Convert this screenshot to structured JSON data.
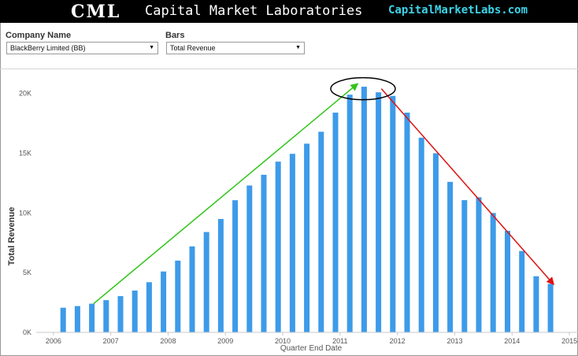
{
  "header": {
    "logo": "CML",
    "title": "Capital Market Laboratories",
    "url": "CapitalMarketLabs.com"
  },
  "controls": {
    "company_label": "Company Name",
    "company_value": "BlackBerry Limited (BB)",
    "bars_label": "Bars",
    "bars_value": "Total Revenue"
  },
  "colors": {
    "bar": "#3d9be9",
    "up_arrow": "#33c41a",
    "down_arrow": "#e01010",
    "highlight_ellipse": "#000000"
  },
  "chart_data": {
    "type": "bar",
    "xlabel": "Quarter End Date",
    "ylabel": "Total Revenue",
    "ylim": [
      0,
      21500
    ],
    "xlim": [
      2005.7,
      2015.15
    ],
    "grid": false,
    "y_ticks": [
      {
        "value": 0,
        "label": "0K"
      },
      {
        "value": 5000,
        "label": "5K"
      },
      {
        "value": 10000,
        "label": "10K"
      },
      {
        "value": 15000,
        "label": "15K"
      },
      {
        "value": 20000,
        "label": "20K"
      }
    ],
    "x_ticks": [
      "2006",
      "2007",
      "2008",
      "2009",
      "2010",
      "2011",
      "2012",
      "2013",
      "2014",
      "2015"
    ],
    "x": [
      2006.17,
      2006.42,
      2006.67,
      2006.92,
      2007.17,
      2007.42,
      2007.67,
      2007.92,
      2008.17,
      2008.42,
      2008.67,
      2008.92,
      2009.17,
      2009.42,
      2009.67,
      2009.92,
      2010.17,
      2010.42,
      2010.67,
      2010.92,
      2011.17,
      2011.42,
      2011.67,
      2011.92,
      2012.17,
      2012.42,
      2012.67,
      2012.92,
      2013.17,
      2013.42,
      2013.67,
      2013.92,
      2014.17,
      2014.42,
      2014.67
    ],
    "values": [
      2066,
      2200,
      2400,
      2700,
      3037,
      3500,
      4200,
      5100,
      6009,
      7200,
      8400,
      9500,
      11065,
      12300,
      13200,
      14300,
      14953,
      15800,
      16800,
      18400,
      19907,
      20567,
      20100,
      19800,
      18400,
      16300,
      15000,
      12600,
      11073,
      11318,
      10000,
      8500,
      6813,
      4700,
      4060
    ],
    "annotations": [
      {
        "type": "arrow",
        "color": "up_arrow",
        "from": [
          2006.7,
          2400
        ],
        "to": [
          2011.3,
          20800
        ]
      },
      {
        "type": "arrow",
        "color": "down_arrow",
        "from": [
          2011.72,
          20400
        ],
        "to": [
          2014.72,
          4050
        ]
      },
      {
        "type": "ellipse",
        "color": "highlight_ellipse",
        "center": [
          2011.4,
          20400
        ]
      }
    ]
  }
}
